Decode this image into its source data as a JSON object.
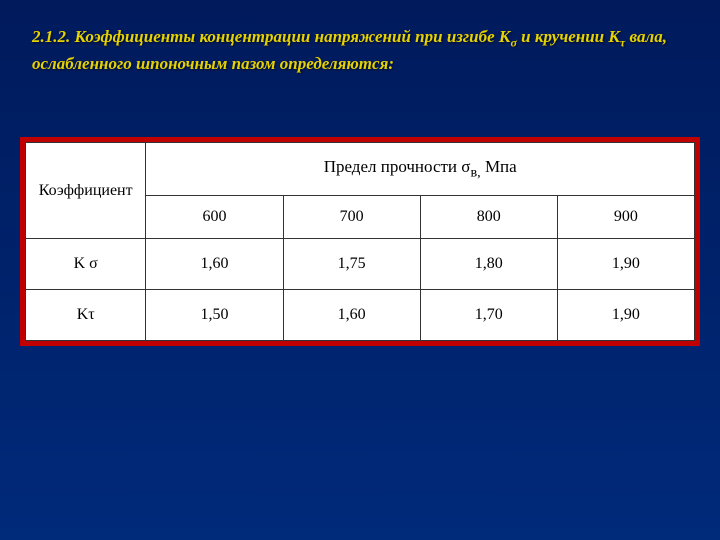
{
  "heading": {
    "prefix": "2.1.2. Коэффициенты концентрации напряжений при изгибе К",
    "sigma": "σ",
    "mid": " и кручении К",
    "tau": "τ",
    "suffix": " вала, ослабленного шпоночным пазом определяются:"
  },
  "table": {
    "row_label_header": "Коэффициент",
    "merged_header": "Предел прочности σ",
    "merged_header_sub": "в,",
    "merged_header_unit": " Мпа",
    "columns": [
      "600",
      "700",
      "800",
      "900"
    ],
    "rows": [
      {
        "label": "K σ",
        "values": [
          "1,60",
          "1,75",
          "1,80",
          "1,90"
        ]
      },
      {
        "label": "Kτ",
        "values": [
          "1,50",
          "1,60",
          "1,70",
          "1,90"
        ]
      }
    ],
    "border_color": "#c00000",
    "background_color": "#ffffff",
    "cell_border_color": "#333333",
    "font_family": "Times New Roman",
    "header_fontsize": 17,
    "cell_fontsize": 16
  },
  "page": {
    "background_gradient_top": "#001a5c",
    "background_gradient_bottom": "#002a7a",
    "heading_color": "#e6d200"
  }
}
